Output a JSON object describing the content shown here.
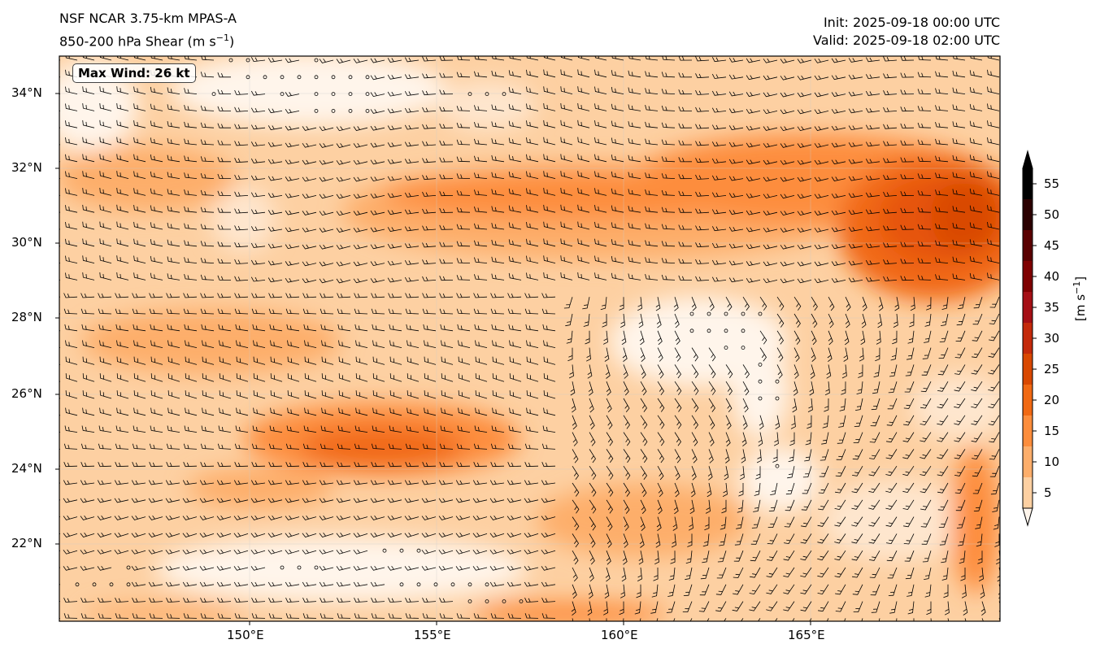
{
  "header": {
    "model_line": "NSF NCAR 3.75-km MPAS-A",
    "field_line_prefix": "850-200 hPa Shear (m s",
    "field_line_exp": "−1",
    "field_line_suffix": ")",
    "init_line": "Init: 2025-09-18 00:00 UTC",
    "valid_line": "Valid: 2025-09-18 02:00 UTC"
  },
  "annotation": {
    "max_wind": "Max Wind: 26 kt"
  },
  "axes": {
    "lon_range": [
      145.3,
      170.5
    ],
    "lat_range": [
      20.0,
      35.0
    ],
    "lon_ticks": [
      "150°E",
      "155°E",
      "160°E",
      "165°E"
    ],
    "lat_ticks": [
      "34°N",
      "32°N",
      "30°N",
      "28°N",
      "26°N",
      "24°N",
      "22°N"
    ]
  },
  "colorbar": {
    "levels": [
      5,
      10,
      15,
      20,
      25,
      30,
      35,
      40,
      45,
      50,
      55
    ],
    "tick_labels": [
      "55",
      "50",
      "45",
      "40",
      "35",
      "30",
      "25",
      "20",
      "15",
      "10",
      "5"
    ],
    "unit_prefix": "[m s",
    "unit_exp": "−1",
    "unit_suffix": "]",
    "colors": [
      "#fff5eb",
      "#fee6ce",
      "#fdd0a2",
      "#fdae6b",
      "#fd8d3c",
      "#f16913",
      "#e6550d",
      "#d94801",
      "#c42a0b",
      "#a50f15",
      "#7f0000",
      "#4a0000",
      "#000000"
    ]
  }
}
